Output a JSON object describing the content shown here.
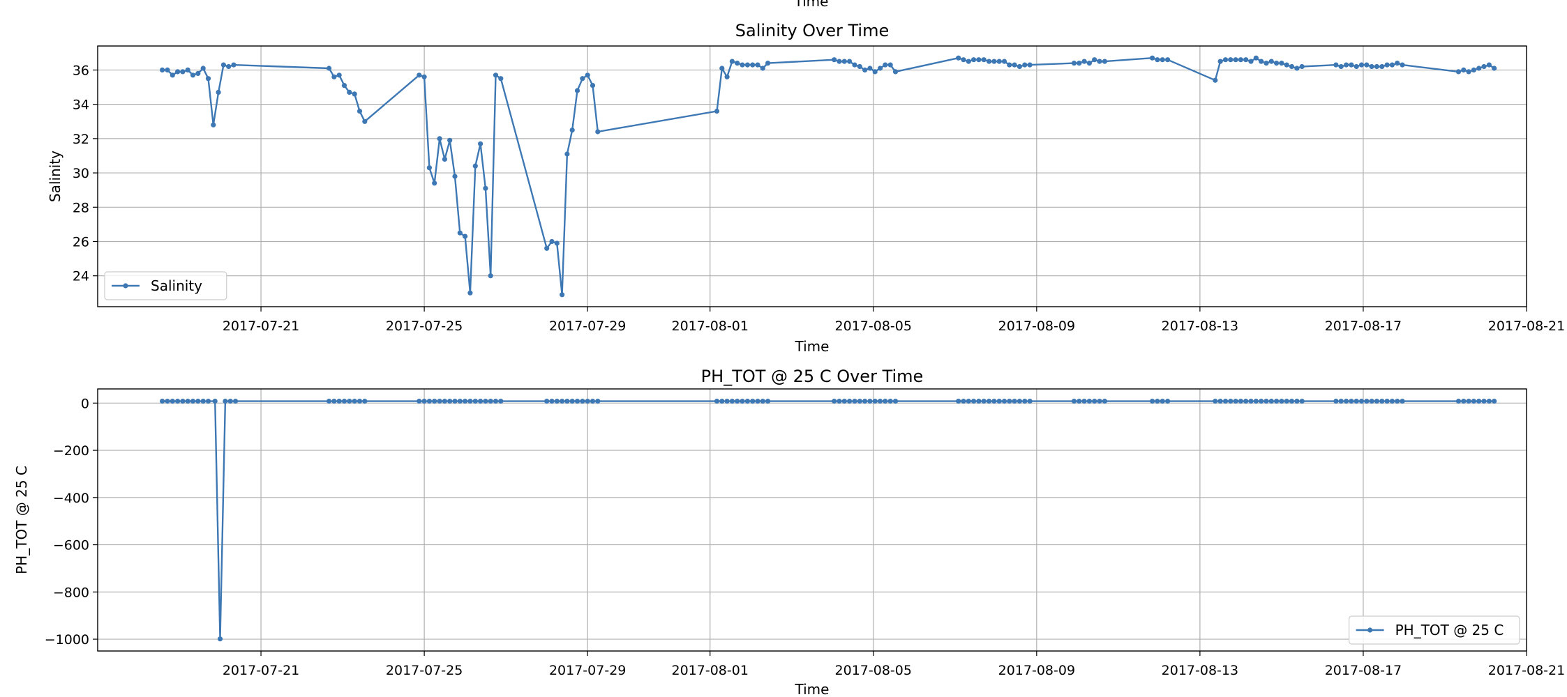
{
  "top_cut_label": "Time",
  "chart_data": [
    {
      "type": "line",
      "title": "Salinity Over Time",
      "xlabel": "Time",
      "ylabel": "Salinity",
      "x_range": [
        "2017-07-17",
        "2017-08-21"
      ],
      "ylim": [
        22.2,
        37.4
      ],
      "y_ticks": [
        24,
        26,
        28,
        30,
        32,
        34,
        36
      ],
      "x_ticks": [
        "2017-07-21",
        "2017-07-25",
        "2017-07-29",
        "2017-08-01",
        "2017-08-05",
        "2017-08-09",
        "2017-08-13",
        "2017-08-17",
        "2017-08-21"
      ],
      "grid": true,
      "legend_position": "lower-left",
      "series": [
        {
          "name": "Salinity",
          "color": "#3d78b4",
          "points": [
            [
              "2017-07-18T14:00",
              36.0
            ],
            [
              "2017-07-18T17:00",
              36.0
            ],
            [
              "2017-07-18T20:00",
              35.7
            ],
            [
              "2017-07-18T23:00",
              35.9
            ],
            [
              "2017-07-19T02:00",
              35.9
            ],
            [
              "2017-07-19T05:00",
              36.0
            ],
            [
              "2017-07-19T08:00",
              35.7
            ],
            [
              "2017-07-19T11:00",
              35.8
            ],
            [
              "2017-07-19T14:00",
              36.1
            ],
            [
              "2017-07-19T17:00",
              35.5
            ],
            [
              "2017-07-19T20:00",
              32.8
            ],
            [
              "2017-07-19T23:00",
              34.7
            ],
            [
              "2017-07-20T02:00",
              36.3
            ],
            [
              "2017-07-20T05:00",
              36.2
            ],
            [
              "2017-07-20T08:00",
              36.3
            ],
            [
              "2017-07-22T16:00",
              36.1
            ],
            [
              "2017-07-22T19:00",
              35.6
            ],
            [
              "2017-07-22T22:00",
              35.7
            ],
            [
              "2017-07-23T01:00",
              35.1
            ],
            [
              "2017-07-23T04:00",
              34.7
            ],
            [
              "2017-07-23T07:00",
              34.6
            ],
            [
              "2017-07-23T10:00",
              33.6
            ],
            [
              "2017-07-23T13:00",
              33.0
            ],
            [
              "2017-07-24T21:00",
              35.7
            ],
            [
              "2017-07-25T00:00",
              35.6
            ],
            [
              "2017-07-25T03:00",
              30.3
            ],
            [
              "2017-07-25T06:00",
              29.4
            ],
            [
              "2017-07-25T09:00",
              32.0
            ],
            [
              "2017-07-25T12:00",
              30.8
            ],
            [
              "2017-07-25T15:00",
              31.9
            ],
            [
              "2017-07-25T18:00",
              29.8
            ],
            [
              "2017-07-25T21:00",
              26.5
            ],
            [
              "2017-07-26T00:00",
              26.3
            ],
            [
              "2017-07-26T03:00",
              23.0
            ],
            [
              "2017-07-26T06:00",
              30.4
            ],
            [
              "2017-07-26T09:00",
              31.7
            ],
            [
              "2017-07-26T12:00",
              29.1
            ],
            [
              "2017-07-26T15:00",
              24.0
            ],
            [
              "2017-07-26T18:00",
              35.7
            ],
            [
              "2017-07-26T21:00",
              35.5
            ],
            [
              "2017-07-28T00:00",
              25.6
            ],
            [
              "2017-07-28T03:00",
              26.0
            ],
            [
              "2017-07-28T06:00",
              25.9
            ],
            [
              "2017-07-28T09:00",
              22.9
            ],
            [
              "2017-07-28T12:00",
              31.1
            ],
            [
              "2017-07-28T15:00",
              32.5
            ],
            [
              "2017-07-28T18:00",
              34.8
            ],
            [
              "2017-07-28T21:00",
              35.5
            ],
            [
              "2017-07-29T00:00",
              35.7
            ],
            [
              "2017-07-29T03:00",
              35.1
            ],
            [
              "2017-07-29T06:00",
              32.4
            ],
            [
              "2017-08-01T04:00",
              33.6
            ],
            [
              "2017-08-01T07:00",
              36.1
            ],
            [
              "2017-08-01T10:00",
              35.6
            ],
            [
              "2017-08-01T13:00",
              36.5
            ],
            [
              "2017-08-01T16:00",
              36.4
            ],
            [
              "2017-08-01T19:00",
              36.3
            ],
            [
              "2017-08-01T22:00",
              36.3
            ],
            [
              "2017-08-02T01:00",
              36.3
            ],
            [
              "2017-08-02T04:00",
              36.3
            ],
            [
              "2017-08-02T07:00",
              36.1
            ],
            [
              "2017-08-02T10:00",
              36.4
            ],
            [
              "2017-08-04T01:00",
              36.6
            ],
            [
              "2017-08-04T04:00",
              36.5
            ],
            [
              "2017-08-04T07:00",
              36.5
            ],
            [
              "2017-08-04T10:00",
              36.5
            ],
            [
              "2017-08-04T13:00",
              36.3
            ],
            [
              "2017-08-04T16:00",
              36.2
            ],
            [
              "2017-08-04T19:00",
              36.0
            ],
            [
              "2017-08-04T22:00",
              36.1
            ],
            [
              "2017-08-05T01:00",
              35.9
            ],
            [
              "2017-08-05T04:00",
              36.1
            ],
            [
              "2017-08-05T07:00",
              36.3
            ],
            [
              "2017-08-05T10:00",
              36.3
            ],
            [
              "2017-08-05T13:00",
              35.9
            ],
            [
              "2017-08-07T02:00",
              36.7
            ],
            [
              "2017-08-07T05:00",
              36.6
            ],
            [
              "2017-08-07T08:00",
              36.5
            ],
            [
              "2017-08-07T11:00",
              36.6
            ],
            [
              "2017-08-07T14:00",
              36.6
            ],
            [
              "2017-08-07T17:00",
              36.6
            ],
            [
              "2017-08-07T20:00",
              36.5
            ],
            [
              "2017-08-07T23:00",
              36.5
            ],
            [
              "2017-08-08T02:00",
              36.5
            ],
            [
              "2017-08-08T05:00",
              36.5
            ],
            [
              "2017-08-08T08:00",
              36.3
            ],
            [
              "2017-08-08T11:00",
              36.3
            ],
            [
              "2017-08-08T14:00",
              36.2
            ],
            [
              "2017-08-08T17:00",
              36.3
            ],
            [
              "2017-08-08T20:00",
              36.3
            ],
            [
              "2017-08-09T22:00",
              36.4
            ],
            [
              "2017-08-10T01:00",
              36.4
            ],
            [
              "2017-08-10T04:00",
              36.5
            ],
            [
              "2017-08-10T07:00",
              36.4
            ],
            [
              "2017-08-10T10:00",
              36.6
            ],
            [
              "2017-08-10T13:00",
              36.5
            ],
            [
              "2017-08-10T16:00",
              36.5
            ],
            [
              "2017-08-11T20:00",
              36.7
            ],
            [
              "2017-08-11T23:00",
              36.6
            ],
            [
              "2017-08-12T02:00",
              36.6
            ],
            [
              "2017-08-12T05:00",
              36.6
            ],
            [
              "2017-08-13T09:00",
              35.4
            ],
            [
              "2017-08-13T12:00",
              36.5
            ],
            [
              "2017-08-13T15:00",
              36.6
            ],
            [
              "2017-08-13T18:00",
              36.6
            ],
            [
              "2017-08-13T21:00",
              36.6
            ],
            [
              "2017-08-14T00:00",
              36.6
            ],
            [
              "2017-08-14T03:00",
              36.6
            ],
            [
              "2017-08-14T06:00",
              36.5
            ],
            [
              "2017-08-14T09:00",
              36.7
            ],
            [
              "2017-08-14T12:00",
              36.5
            ],
            [
              "2017-08-14T15:00",
              36.4
            ],
            [
              "2017-08-14T18:00",
              36.5
            ],
            [
              "2017-08-14T21:00",
              36.4
            ],
            [
              "2017-08-15T00:00",
              36.4
            ],
            [
              "2017-08-15T03:00",
              36.3
            ],
            [
              "2017-08-15T06:00",
              36.2
            ],
            [
              "2017-08-15T09:00",
              36.1
            ],
            [
              "2017-08-15T12:00",
              36.2
            ],
            [
              "2017-08-16T08:00",
              36.3
            ],
            [
              "2017-08-16T11:00",
              36.2
            ],
            [
              "2017-08-16T14:00",
              36.3
            ],
            [
              "2017-08-16T17:00",
              36.3
            ],
            [
              "2017-08-16T20:00",
              36.2
            ],
            [
              "2017-08-16T23:00",
              36.3
            ],
            [
              "2017-08-17T02:00",
              36.3
            ],
            [
              "2017-08-17T05:00",
              36.2
            ],
            [
              "2017-08-17T08:00",
              36.2
            ],
            [
              "2017-08-17T11:00",
              36.2
            ],
            [
              "2017-08-17T14:00",
              36.3
            ],
            [
              "2017-08-17T17:00",
              36.3
            ],
            [
              "2017-08-17T20:00",
              36.4
            ],
            [
              "2017-08-17T23:00",
              36.3
            ],
            [
              "2017-08-19T08:00",
              35.9
            ],
            [
              "2017-08-19T11:00",
              36.0
            ],
            [
              "2017-08-19T14:00",
              35.9
            ],
            [
              "2017-08-19T17:00",
              36.0
            ],
            [
              "2017-08-19T20:00",
              36.1
            ],
            [
              "2017-08-19T23:00",
              36.2
            ],
            [
              "2017-08-20T02:00",
              36.3
            ],
            [
              "2017-08-20T05:00",
              36.1
            ]
          ]
        }
      ]
    },
    {
      "type": "line",
      "title": "PH_TOT  @ 25 C Over Time",
      "xlabel": "Time",
      "ylabel": "PH_TOT  @ 25 C",
      "x_range": [
        "2017-07-17",
        "2017-08-21"
      ],
      "ylim": [
        -1050,
        60
      ],
      "y_ticks": [
        0,
        -200,
        -400,
        -600,
        -800,
        -1000
      ],
      "x_ticks": [
        "2017-07-21",
        "2017-07-25",
        "2017-07-29",
        "2017-08-01",
        "2017-08-05",
        "2017-08-09",
        "2017-08-13",
        "2017-08-17",
        "2017-08-21"
      ],
      "grid": true,
      "legend_position": "lower-right",
      "series": [
        {
          "name": "PH_TOT  @ 25 C",
          "color": "#3d78b4",
          "baseline_value": 8.0,
          "outliers": [
            [
              "2017-07-20T00:00",
              -999
            ]
          ],
          "sample_times": [
            "2017-07-18T14:00",
            "2017-07-18T17:00",
            "2017-07-18T20:00",
            "2017-07-18T23:00",
            "2017-07-19T02:00",
            "2017-07-19T05:00",
            "2017-07-19T08:00",
            "2017-07-19T11:00",
            "2017-07-19T14:00",
            "2017-07-19T17:00",
            "2017-07-19T21:00",
            "2017-07-20T00:00",
            "2017-07-20T03:00",
            "2017-07-20T06:00",
            "2017-07-20T09:00",
            "2017-07-22T16:00",
            "2017-07-22T19:00",
            "2017-07-22T22:00",
            "2017-07-23T01:00",
            "2017-07-23T04:00",
            "2017-07-23T07:00",
            "2017-07-23T10:00",
            "2017-07-23T13:00",
            "2017-07-24T21:00",
            "2017-07-25T00:00",
            "2017-07-25T03:00",
            "2017-07-25T06:00",
            "2017-07-25T09:00",
            "2017-07-25T12:00",
            "2017-07-25T15:00",
            "2017-07-25T18:00",
            "2017-07-25T21:00",
            "2017-07-26T00:00",
            "2017-07-26T03:00",
            "2017-07-26T06:00",
            "2017-07-26T09:00",
            "2017-07-26T12:00",
            "2017-07-26T15:00",
            "2017-07-26T18:00",
            "2017-07-26T21:00",
            "2017-07-28T00:00",
            "2017-07-28T03:00",
            "2017-07-28T06:00",
            "2017-07-28T09:00",
            "2017-07-28T12:00",
            "2017-07-28T15:00",
            "2017-07-28T18:00",
            "2017-07-28T21:00",
            "2017-07-29T00:00",
            "2017-07-29T03:00",
            "2017-07-29T06:00",
            "2017-08-01T04:00",
            "2017-08-01T07:00",
            "2017-08-01T10:00",
            "2017-08-01T13:00",
            "2017-08-01T16:00",
            "2017-08-01T19:00",
            "2017-08-01T22:00",
            "2017-08-02T01:00",
            "2017-08-02T04:00",
            "2017-08-02T07:00",
            "2017-08-02T10:00",
            "2017-08-04T01:00",
            "2017-08-04T04:00",
            "2017-08-04T07:00",
            "2017-08-04T10:00",
            "2017-08-04T13:00",
            "2017-08-04T16:00",
            "2017-08-04T19:00",
            "2017-08-04T22:00",
            "2017-08-05T01:00",
            "2017-08-05T04:00",
            "2017-08-05T07:00",
            "2017-08-05T10:00",
            "2017-08-05T13:00",
            "2017-08-07T02:00",
            "2017-08-07T05:00",
            "2017-08-07T08:00",
            "2017-08-07T11:00",
            "2017-08-07T14:00",
            "2017-08-07T17:00",
            "2017-08-07T20:00",
            "2017-08-07T23:00",
            "2017-08-08T02:00",
            "2017-08-08T05:00",
            "2017-08-08T08:00",
            "2017-08-08T11:00",
            "2017-08-08T14:00",
            "2017-08-08T17:00",
            "2017-08-08T20:00",
            "2017-08-09T22:00",
            "2017-08-10T01:00",
            "2017-08-10T04:00",
            "2017-08-10T07:00",
            "2017-08-10T10:00",
            "2017-08-10T13:00",
            "2017-08-10T16:00",
            "2017-08-11T20:00",
            "2017-08-11T23:00",
            "2017-08-12T02:00",
            "2017-08-12T05:00",
            "2017-08-13T09:00",
            "2017-08-13T12:00",
            "2017-08-13T15:00",
            "2017-08-13T18:00",
            "2017-08-13T21:00",
            "2017-08-14T00:00",
            "2017-08-14T03:00",
            "2017-08-14T06:00",
            "2017-08-14T09:00",
            "2017-08-14T12:00",
            "2017-08-14T15:00",
            "2017-08-14T18:00",
            "2017-08-14T21:00",
            "2017-08-15T00:00",
            "2017-08-15T03:00",
            "2017-08-15T06:00",
            "2017-08-15T09:00",
            "2017-08-15T12:00",
            "2017-08-16T08:00",
            "2017-08-16T11:00",
            "2017-08-16T14:00",
            "2017-08-16T17:00",
            "2017-08-16T20:00",
            "2017-08-16T23:00",
            "2017-08-17T02:00",
            "2017-08-17T05:00",
            "2017-08-17T08:00",
            "2017-08-17T11:00",
            "2017-08-17T14:00",
            "2017-08-17T17:00",
            "2017-08-17T20:00",
            "2017-08-17T23:00",
            "2017-08-19T08:00",
            "2017-08-19T11:00",
            "2017-08-19T14:00",
            "2017-08-19T17:00",
            "2017-08-19T20:00",
            "2017-08-19T23:00",
            "2017-08-20T02:00",
            "2017-08-20T05:00"
          ]
        }
      ]
    }
  ]
}
